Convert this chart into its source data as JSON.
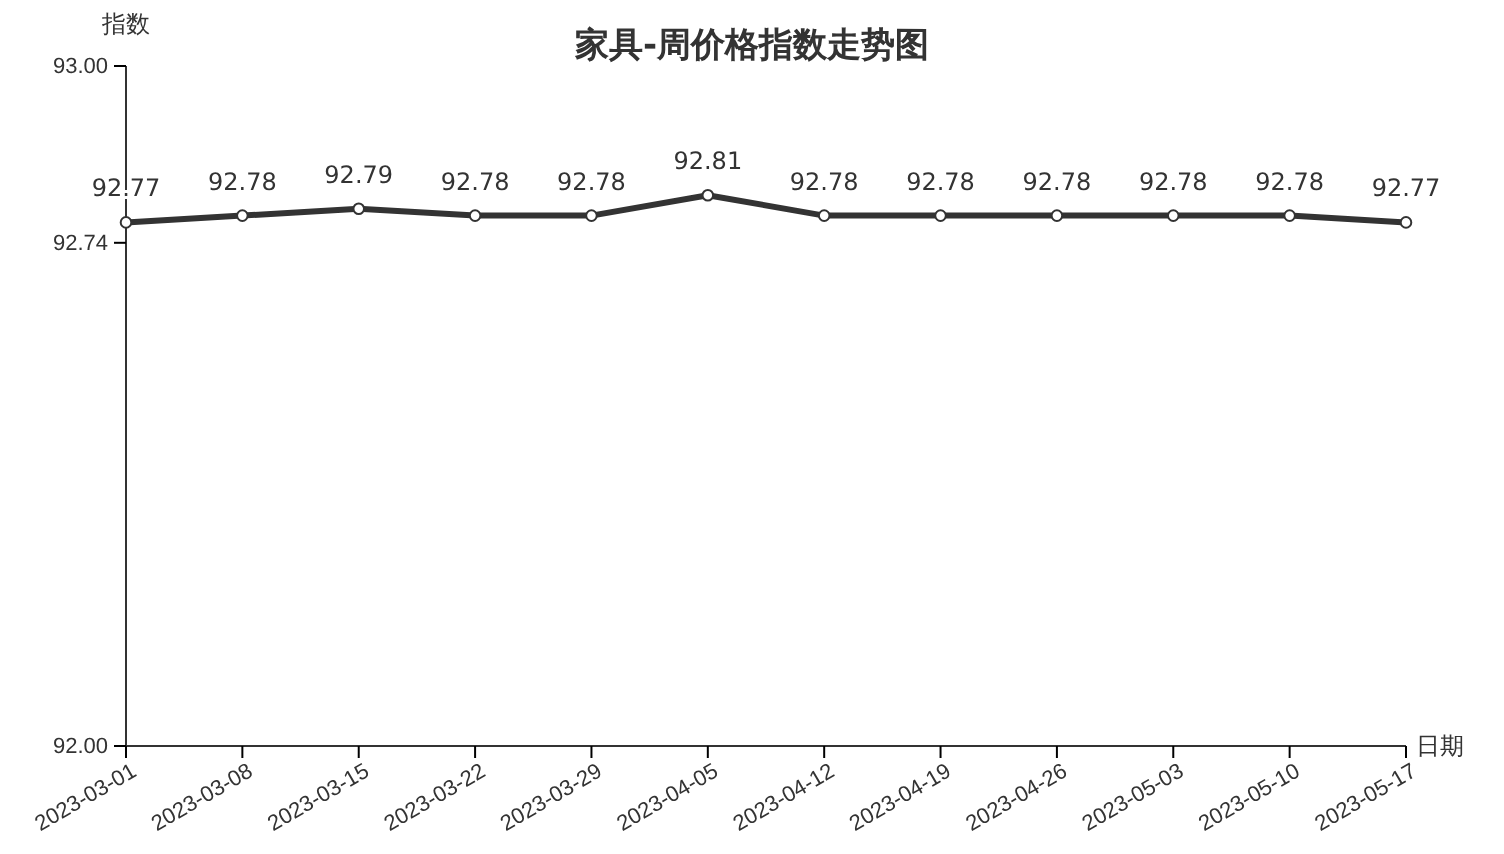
{
  "chart_data": {
    "type": "line",
    "title": "家具-周价格指数走势图",
    "xlabel": "日期",
    "ylabel": "指数",
    "categories": [
      "2023-03-01",
      "2023-03-08",
      "2023-03-15",
      "2023-03-22",
      "2023-03-29",
      "2023-04-05",
      "2023-04-12",
      "2023-04-19",
      "2023-04-26",
      "2023-05-03",
      "2023-05-10",
      "2023-05-17"
    ],
    "series": [
      {
        "color": "#333333",
        "values": [
          92.77,
          92.78,
          92.79,
          92.78,
          92.78,
          92.81,
          92.78,
          92.78,
          92.78,
          92.78,
          92.78,
          92.77
        ]
      }
    ],
    "ylim": [
      92,
      93
    ],
    "yticks": [
      {
        "value": 92,
        "label": "92.00"
      },
      92.74,
      {
        "value": 93,
        "label": "93.00"
      }
    ],
    "data_labels": true,
    "marker": "circle",
    "line_style": "solid"
  }
}
